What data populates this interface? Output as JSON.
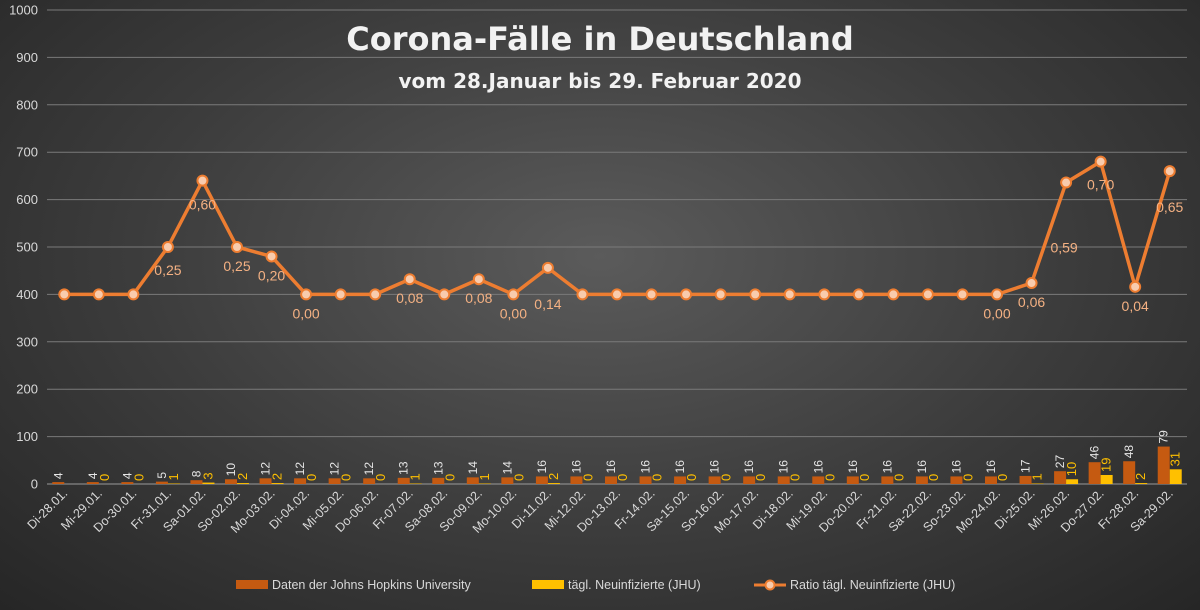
{
  "chart_data": {
    "type": "bar",
    "title": "Corona-Fälle in Deutschland",
    "subtitle": "vom 28.Januar bis 29. Februar 2020",
    "ylim": [
      0,
      1000
    ],
    "yticks": [
      0,
      100,
      200,
      300,
      400,
      500,
      600,
      700,
      800,
      900,
      1000
    ],
    "ratio_scale": {
      "offset": 400,
      "factor": 400
    },
    "categories": [
      "Di-28.01.",
      "Mi-29.01.",
      "Do-30.01.",
      "Fr-31.01.",
      "Sa-01.02.",
      "So-02.02.",
      "Mo-03.02.",
      "Di-04.02.",
      "Mi-05.02.",
      "Do-06.02.",
      "Fr-07.02.",
      "Sa-08.02.",
      "So-09.02.",
      "Mo-10.02.",
      "Di-11.02.",
      "Mi-12.02.",
      "Do-13.02.",
      "Fr-14.02.",
      "Sa-15.02.",
      "So-16.02.",
      "Mo-17.02.",
      "Di-18.02.",
      "Mi-19.02.",
      "Do-20.02.",
      "Fr-21.02.",
      "Sa-22.02.",
      "So-23.02.",
      "Mo-24.02.",
      "Di-25.02.",
      "Mi-26.02.",
      "Do-27.02.",
      "Fr-28.02.",
      "Sa-29.02."
    ],
    "series": [
      {
        "name": "Daten der Johns Hopkins University",
        "kind": "bar",
        "color": "#c55a11",
        "values": [
          4,
          4,
          4,
          5,
          8,
          10,
          12,
          12,
          12,
          12,
          13,
          13,
          14,
          14,
          16,
          16,
          16,
          16,
          16,
          16,
          16,
          16,
          16,
          16,
          16,
          16,
          16,
          16,
          17,
          27,
          46,
          48,
          79
        ]
      },
      {
        "name": "tägl. Neuinfizierte (JHU)",
        "kind": "bar",
        "color": "#ffc000",
        "values": [
          null,
          0,
          0,
          1,
          3,
          2,
          2,
          0,
          0,
          0,
          1,
          0,
          1,
          0,
          2,
          0,
          0,
          0,
          0,
          0,
          0,
          0,
          0,
          0,
          0,
          0,
          0,
          0,
          1,
          10,
          19,
          2,
          31
        ]
      },
      {
        "name": "Ratio tägl. Neuinfizierte (JHU)",
        "kind": "line",
        "color": "#ed7d31",
        "values": [
          0.0,
          0.0,
          0.0,
          0.25,
          0.6,
          0.25,
          0.2,
          0.0,
          0.0,
          0.0,
          0.08,
          0.0,
          0.08,
          0.0,
          0.14,
          0.0,
          0.0,
          0.0,
          0.0,
          0.0,
          0.0,
          0.0,
          0.0,
          0.0,
          0.0,
          0.0,
          0.0,
          0.0,
          0.06,
          0.59,
          0.7,
          0.04,
          0.65
        ],
        "labels": [
          "",
          "",
          "",
          "0,25",
          "0,60",
          "0,25",
          "0,20",
          "0,00",
          "",
          "",
          "0,08",
          "",
          "0,08",
          "0,00",
          "0,14",
          "",
          "",
          "",
          "",
          "",
          "",
          "",
          "",
          "",
          "",
          "",
          "",
          "0,00",
          "0,06",
          "0,59",
          "0,70",
          "0,04",
          "0,65"
        ]
      }
    ],
    "legend": "bottom",
    "grid": true
  }
}
